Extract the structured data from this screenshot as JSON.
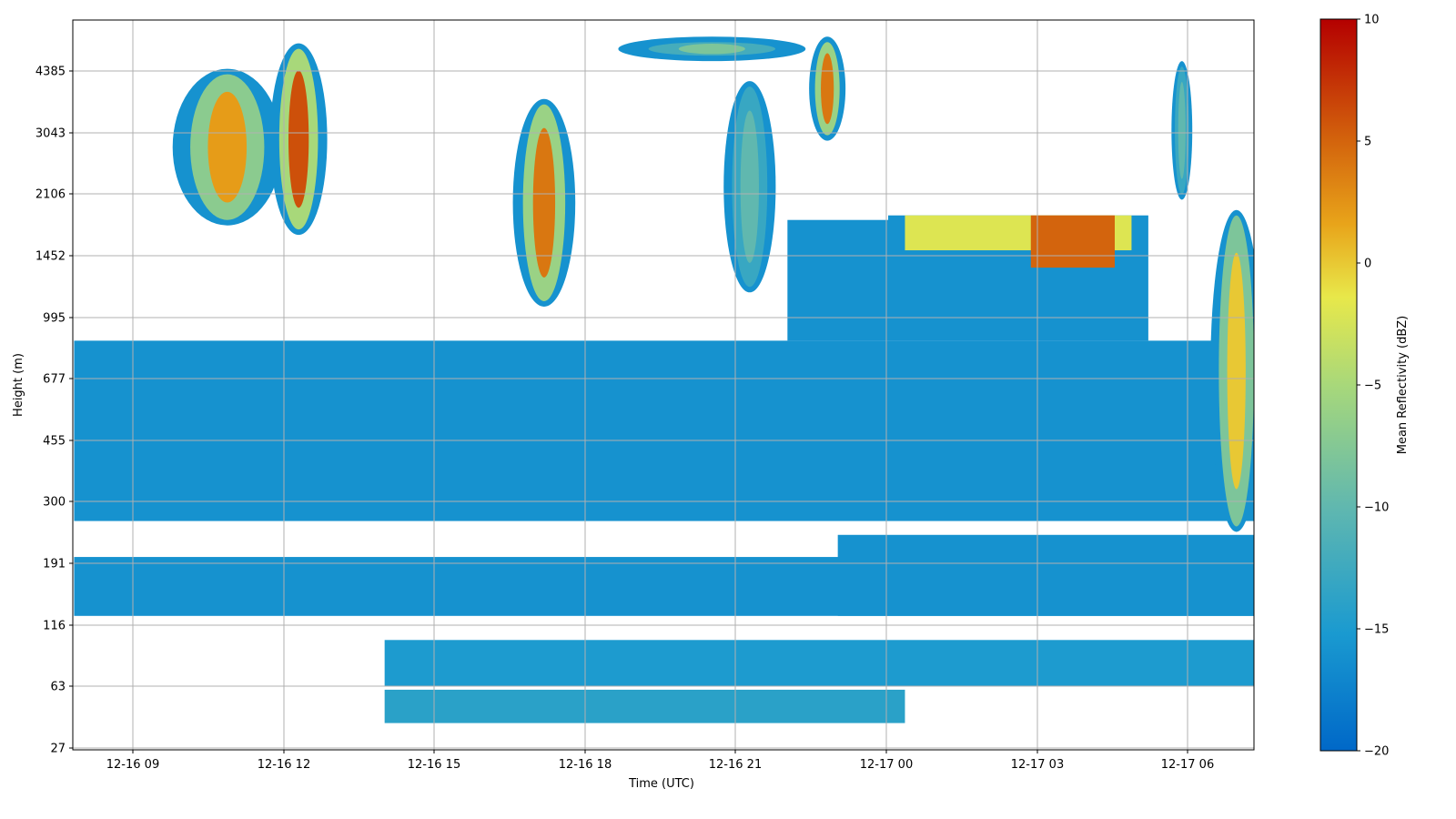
{
  "chart_data": {
    "type": "heatmap",
    "title": "",
    "xlabel": "Time (UTC)",
    "ylabel": "Height (m)",
    "x_ticks": [
      "12-16 09",
      "12-16 12",
      "12-16 15",
      "12-16 18",
      "12-16 21",
      "12-17 00",
      "12-17 03",
      "12-17 06"
    ],
    "y_ticks": [
      "27",
      "63",
      "116",
      "191",
      "300",
      "455",
      "677",
      "995",
      "1452",
      "2106",
      "3043",
      "4385"
    ],
    "y_scale": "log",
    "grid": true,
    "colorbar": {
      "label": "Mean Reflectivity (dBZ)",
      "min": -20,
      "max": 10,
      "ticks": [
        "10",
        "5",
        "0",
        "−5",
        "−10",
        "−15",
        "−20"
      ],
      "colormap": [
        "#0068c8",
        "#1a9ad0",
        "#5fb7b0",
        "#a8d87a",
        "#e8e84a",
        "#e8a41a",
        "#d2600c",
        "#b40000"
      ]
    },
    "features": [
      {
        "kind": "layer",
        "t_start": "12-16 07:50",
        "t_end": "12-17 07:45",
        "z_bottom": 260,
        "z_top": 860,
        "dbz": -16
      },
      {
        "kind": "layer",
        "t_start": "12-16 07:50",
        "t_end": "12-17 07:45",
        "z_bottom": 125,
        "z_top": 200,
        "dbz": -16
      },
      {
        "kind": "layer",
        "t_start": "12-16 23:00",
        "t_end": "12-17 07:45",
        "z_bottom": 125,
        "z_top": 235,
        "dbz": -16
      },
      {
        "kind": "layer",
        "t_start": "12-17 00:00",
        "t_end": "12-17 05:10",
        "z_bottom": 860,
        "z_top": 1850,
        "dbz": -16
      },
      {
        "kind": "layer",
        "t_start": "12-17 00:20",
        "t_end": "12-17 04:50",
        "z_bottom": 1500,
        "z_top": 1850,
        "dbz": -2
      },
      {
        "kind": "layer",
        "t_start": "12-17 02:50",
        "t_end": "12-17 04:30",
        "z_bottom": 1350,
        "z_top": 1850,
        "dbz": 5
      },
      {
        "kind": "layer",
        "t_start": "12-16 22:00",
        "t_end": "12-17 00:00",
        "z_bottom": 860,
        "z_top": 1800,
        "dbz": -16
      },
      {
        "kind": "plume",
        "t_start": "12-16 10:00",
        "t_end": "12-16 11:45",
        "z_bottom": 1800,
        "z_top": 4300,
        "dbz": 2
      },
      {
        "kind": "plume",
        "t_start": "12-16 11:50",
        "t_end": "12-16 12:45",
        "z_bottom": 1700,
        "z_top": 5000,
        "dbz": 6
      },
      {
        "kind": "plume",
        "t_start": "12-16 16:40",
        "t_end": "12-16 17:40",
        "z_bottom": 1100,
        "z_top": 3600,
        "dbz": 4
      },
      {
        "kind": "plume",
        "t_start": "12-16 20:50",
        "t_end": "12-16 21:40",
        "z_bottom": 1200,
        "z_top": 4000,
        "dbz": -10
      },
      {
        "kind": "plume",
        "t_start": "12-16 22:30",
        "t_end": "12-16 23:05",
        "z_bottom": 3000,
        "z_top": 5200,
        "dbz": 4
      },
      {
        "kind": "plume",
        "t_start": "12-16 19:00",
        "t_end": "12-16 22:00",
        "z_bottom": 4800,
        "z_top": 5200,
        "dbz": -8
      },
      {
        "kind": "plume",
        "t_start": "12-17 06:30",
        "t_end": "12-17 07:20",
        "z_bottom": 250,
        "z_top": 1850,
        "dbz": 0
      },
      {
        "kind": "plume",
        "t_start": "12-17 05:40",
        "t_end": "12-17 06:00",
        "z_bottom": 2100,
        "z_top": 4500,
        "dbz": -10
      },
      {
        "kind": "layer",
        "t_start": "12-16 14:00",
        "t_end": "12-17 00:20",
        "z_bottom": 38,
        "z_top": 60,
        "dbz": -14
      },
      {
        "kind": "layer",
        "t_start": "12-16 14:00",
        "t_end": "12-17 07:45",
        "z_bottom": 63,
        "z_top": 100,
        "dbz": -15
      }
    ]
  }
}
